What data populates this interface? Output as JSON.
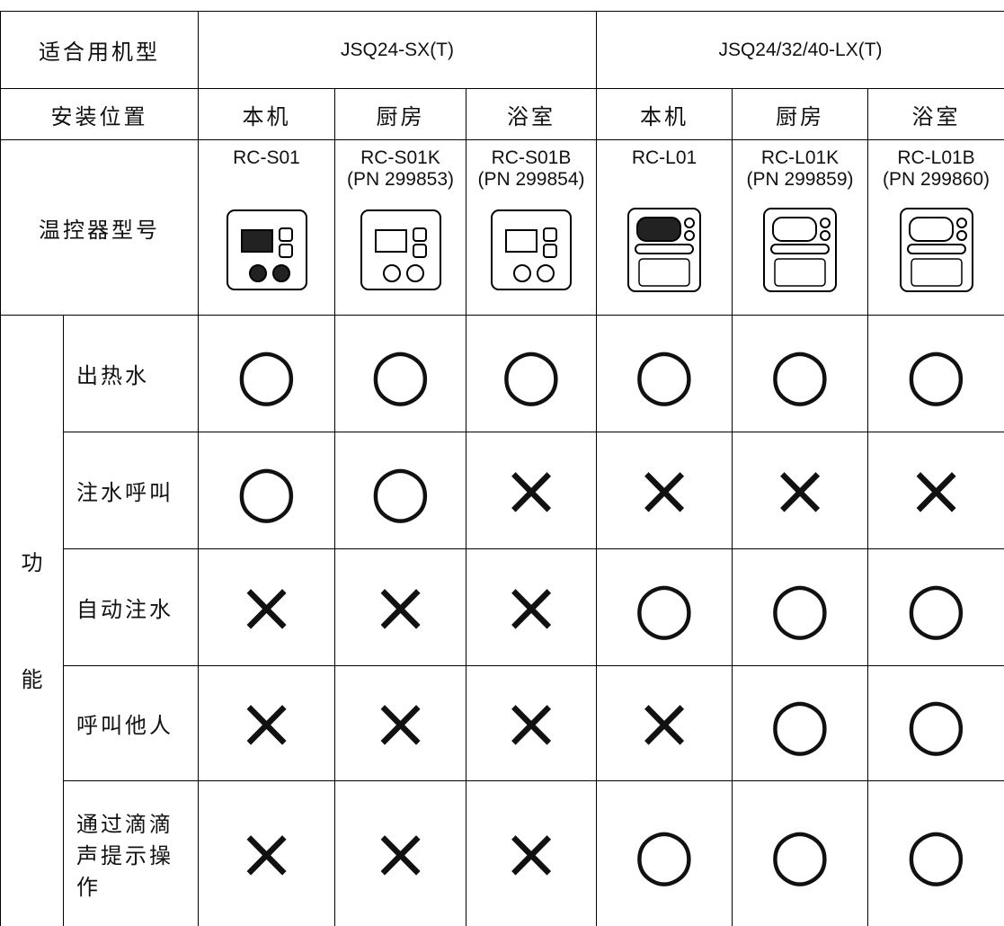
{
  "table": {
    "header": {
      "label": "适合用机型",
      "groups": [
        "JSQ24-SX(T)",
        "JSQ24/32/40-LX(T)"
      ]
    },
    "location": {
      "label": "安装位置",
      "values": [
        "本机",
        "厨房",
        "浴室",
        "本机",
        "厨房",
        "浴室"
      ]
    },
    "model": {
      "label": "温控器型号",
      "values": [
        [
          "RC-S01"
        ],
        [
          "RC-S01K",
          "(PN 299853)"
        ],
        [
          "RC-S01B",
          "(PN 299854)"
        ],
        [
          "RC-L01"
        ],
        [
          "RC-L01K",
          "(PN 299859)"
        ],
        [
          "RC-L01B",
          "(PN 299860)"
        ]
      ]
    },
    "function": {
      "label": "功能",
      "rows": [
        {
          "label": "出热水",
          "marks": [
            "○",
            "○",
            "○",
            "○",
            "○",
            "○"
          ]
        },
        {
          "label": "注水呼叫",
          "marks": [
            "○",
            "○",
            "×",
            "×",
            "×",
            "×"
          ]
        },
        {
          "label": "自动注水",
          "marks": [
            "×",
            "×",
            "×",
            "○",
            "○",
            "○"
          ]
        },
        {
          "label": "呼叫他人",
          "marks": [
            "×",
            "×",
            "×",
            "×",
            "○",
            "○"
          ]
        },
        {
          "label": "通过滴滴声提示操作",
          "marks": [
            "×",
            "×",
            "×",
            "○",
            "○",
            "○"
          ]
        }
      ]
    }
  }
}
